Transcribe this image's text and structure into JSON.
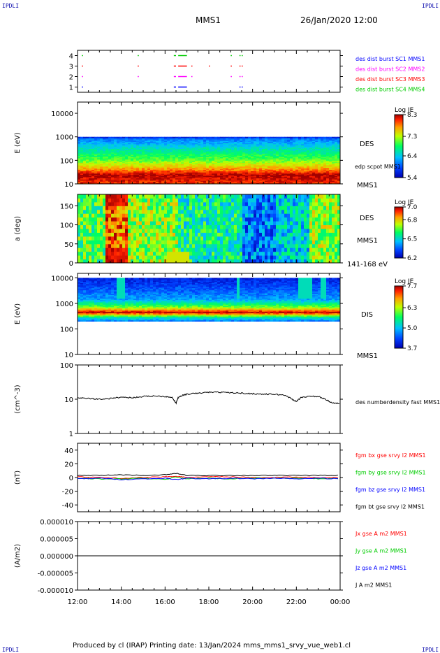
{
  "corners": {
    "top_left": "IPDLI",
    "top_right": "IPDLI",
    "bottom_left": "IPDLI",
    "bottom_right": "IPDLI"
  },
  "header": {
    "spacecraft": "MMS1",
    "datetime": "26/Jan/2020 12:00"
  },
  "footer": {
    "text": "Produced by cl (IRAP)   Printing date: 13/Jan/2024   mms_mms1_srvy_vue_web1.cl"
  },
  "colors": {
    "red": "#ff0000",
    "green": "#00cc00",
    "blue": "#0000ff",
    "magenta": "#ff00ff",
    "black": "#000000"
  },
  "chart_data": [
    {
      "type": "scatter",
      "id": "burst",
      "ylim": [
        0.5,
        4.5
      ],
      "yticks": [
        "1",
        "2",
        "3",
        "4"
      ],
      "legend": [
        {
          "label": "des dist burst SC1 MMS1",
          "color": "#0000ff"
        },
        {
          "label": "des dist burst SC2 MMS2",
          "color": "#ff00ff"
        },
        {
          "label": "des dist burst SC3 MMS3",
          "color": "#ff0000"
        },
        {
          "label": "des dist burst SC4 MMS4",
          "color": "#00cc00"
        }
      ],
      "intervals": [
        {
          "level": 4,
          "color": "#00cc00",
          "t": [
            [
              12.2,
              12.25
            ],
            [
              14.75,
              14.8
            ],
            [
              16.4,
              16.5
            ],
            [
              16.6,
              17.0
            ],
            [
              19.0,
              19.05
            ],
            [
              19.4,
              19.45
            ],
            [
              19.5,
              19.55
            ]
          ]
        },
        {
          "level": 3,
          "color": "#ff0000",
          "t": [
            [
              12.2,
              12.25
            ],
            [
              14.75,
              14.8
            ],
            [
              16.4,
              16.5
            ],
            [
              16.6,
              17.0
            ],
            [
              17.2,
              17.25
            ],
            [
              18.0,
              18.05
            ],
            [
              19.0,
              19.05
            ],
            [
              19.4,
              19.45
            ],
            [
              19.5,
              19.55
            ]
          ]
        },
        {
          "level": 2,
          "color": "#ff00ff",
          "t": [
            [
              12.2,
              12.25
            ],
            [
              14.75,
              14.8
            ],
            [
              16.4,
              16.5
            ],
            [
              16.6,
              17.0
            ],
            [
              17.2,
              17.25
            ],
            [
              19.0,
              19.05
            ],
            [
              19.4,
              19.45
            ],
            [
              19.5,
              19.55
            ]
          ]
        },
        {
          "level": 1,
          "color": "#0000ff",
          "t": [
            [
              12.2,
              12.25
            ],
            [
              16.4,
              16.5
            ],
            [
              16.6,
              17.0
            ],
            [
              19.4,
              19.45
            ],
            [
              19.5,
              19.55
            ]
          ]
        }
      ]
    },
    {
      "type": "heatmap",
      "id": "des-energy",
      "ylabel": "E (eV)",
      "yscale": "log",
      "ylim": [
        10,
        30000
      ],
      "yticks": [
        "10",
        "100",
        "1000",
        "10000"
      ],
      "side_labels": {
        "instrument": "DES",
        "overlay": "edp scpot MMS1",
        "spacecraft": "MMS1"
      },
      "colorbar": {
        "label": "Log JE",
        "ticks": [
          "8.3",
          "7.3",
          "6.4",
          "5.4"
        ],
        "range": [
          5.4,
          8.3
        ]
      },
      "profile": [
        {
          "E": 10,
          "v": 8.0
        },
        {
          "E": 25,
          "v": 8.3
        },
        {
          "E": 40,
          "v": 7.8
        },
        {
          "E": 100,
          "v": 7.1
        },
        {
          "E": 300,
          "v": 6.6
        },
        {
          "E": 900,
          "v": 6.0
        },
        {
          "E": 1000,
          "v": 5.4
        }
      ]
    },
    {
      "type": "heatmap",
      "id": "des-pitch",
      "ylabel": "a (deg)",
      "ylim": [
        0,
        180
      ],
      "yticks": [
        "0",
        "50",
        "100",
        "150"
      ],
      "side_labels": {
        "instrument": "DES",
        "spacecraft": "MMS1",
        "energy": "141-168 eV"
      },
      "colorbar": {
        "label": "Log JE",
        "ticks": [
          "7.0",
          "6.8",
          "6.5",
          "6.2"
        ],
        "range": [
          6.2,
          7.0
        ]
      }
    },
    {
      "type": "heatmap",
      "id": "dis-energy",
      "ylabel": "E (eV)",
      "yscale": "log",
      "ylim": [
        10,
        15000
      ],
      "yticks": [
        "10",
        "100",
        "1000",
        "10000"
      ],
      "side_labels": {
        "instrument": "DIS",
        "spacecraft": "MMS1"
      },
      "colorbar": {
        "label": "Log JE",
        "ticks": [
          "7.7",
          "6.3",
          "5.0",
          "3.7"
        ],
        "range": [
          3.7,
          7.7
        ]
      },
      "profile": [
        {
          "E": 200,
          "v": 4.5
        },
        {
          "E": 300,
          "v": 5.5
        },
        {
          "E": 450,
          "v": 7.7
        },
        {
          "E": 700,
          "v": 6.2
        },
        {
          "E": 1500,
          "v": 4.8
        },
        {
          "E": 10000,
          "v": 4.0
        }
      ]
    },
    {
      "type": "line",
      "id": "density",
      "ylabel": "(cm^-3)",
      "yscale": "log",
      "ylim": [
        1,
        100
      ],
      "yticks": [
        "1",
        "10",
        "100"
      ],
      "series": [
        {
          "name": "des numberdensity fast MMS1",
          "color": "#000000",
          "x": [
            12.0,
            12.5,
            13.0,
            13.5,
            14.0,
            14.5,
            15.0,
            15.5,
            16.0,
            16.3,
            16.5,
            16.6,
            16.8,
            17.0,
            17.5,
            18.0,
            18.5,
            19.0,
            19.5,
            20.0,
            20.5,
            21.0,
            21.5,
            21.8,
            22.0,
            22.2,
            22.5,
            23.0,
            23.3,
            23.6,
            24.0
          ],
          "y": [
            11,
            10.5,
            10,
            10.5,
            11.5,
            11,
            12,
            12.5,
            12,
            11.5,
            7.5,
            11,
            13,
            14,
            15,
            16,
            16,
            15.5,
            15,
            14.5,
            14,
            14,
            13,
            10,
            8.5,
            11,
            12,
            12,
            10,
            8,
            7.5
          ]
        }
      ]
    },
    {
      "type": "line",
      "id": "fgm",
      "ylabel": "(nT)",
      "ylim": [
        -50,
        50
      ],
      "yticks": [
        "-40",
        "-20",
        "0",
        "20",
        "40"
      ],
      "series": [
        {
          "name": "fgm bx gse srvy l2 MMS1",
          "color": "#ff0000"
        },
        {
          "name": "fgm by gse srvy l2 MMS1",
          "color": "#00cc00"
        },
        {
          "name": "fgm bz gse srvy l2 MMS1",
          "color": "#0000ff"
        },
        {
          "name": "fgm bt gse srvy l2 MMS1",
          "color": "#000000"
        }
      ],
      "x": [
        12,
        13,
        14,
        15,
        16,
        16.5,
        17,
        18,
        19,
        20,
        21,
        22,
        23,
        24
      ],
      "values": {
        "bx": [
          1,
          0,
          -1,
          0,
          1,
          2,
          0,
          1,
          1,
          0,
          0,
          1,
          0,
          0
        ],
        "by": [
          -1,
          -2,
          -2,
          -1,
          -3,
          1,
          -2,
          -1,
          -2,
          -1,
          -1,
          -1,
          -2,
          -1
        ],
        "bz": [
          -2,
          -1,
          -3,
          -2,
          -1,
          -3,
          -1,
          -2,
          -1,
          -2,
          -1,
          -2,
          -1,
          -2
        ],
        "bt": [
          3,
          3,
          4,
          3,
          4,
          6,
          3,
          3,
          3,
          3,
          3,
          3,
          3,
          3
        ]
      }
    },
    {
      "type": "line",
      "id": "current",
      "ylabel": "(A/m2)",
      "ylim": [
        -1e-05,
        1e-05
      ],
      "yticks": [
        "-0.000010",
        "-0.000005",
        "0.000000",
        "0.000005",
        "0.000010"
      ],
      "series": [
        {
          "name": "Jx gse A m2 MMS1",
          "color": "#ff0000"
        },
        {
          "name": "Jy gse A m2 MMS1",
          "color": "#00cc00"
        },
        {
          "name": "Jz gse A m2 MMS1",
          "color": "#0000ff"
        },
        {
          "name": "J A m2 MMS1",
          "color": "#000000"
        }
      ],
      "x": [
        12,
        24
      ],
      "values": {
        "j": [
          0,
          0
        ]
      }
    }
  ],
  "time_axis": {
    "range": [
      12,
      24
    ],
    "ticks": [
      "12:00",
      "14:00",
      "16:00",
      "18:00",
      "20:00",
      "22:00",
      "00:00"
    ]
  }
}
